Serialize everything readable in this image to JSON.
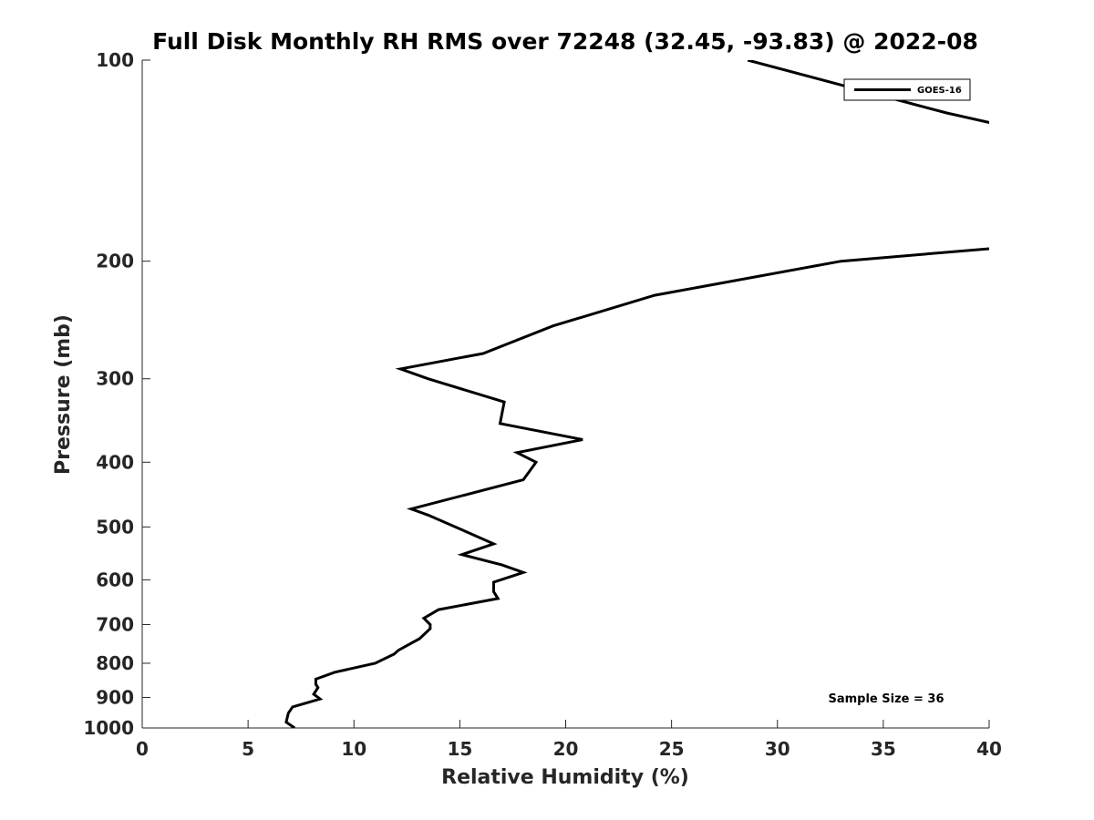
{
  "chart_data": {
    "type": "line",
    "title": "Full Disk Monthly RH RMS over 72248 (32.45, -93.83) @ 2022-08",
    "xlabel": "Relative Humidity (%)",
    "ylabel": "Pressure (mb)",
    "xlim": [
      0,
      40
    ],
    "ylim": [
      1000,
      100
    ],
    "y_scale": "log",
    "x_ticks": [
      0,
      5,
      10,
      15,
      20,
      25,
      30,
      35,
      40
    ],
    "y_ticks": [
      100,
      200,
      300,
      400,
      500,
      600,
      700,
      800,
      900,
      1000
    ],
    "grid": false,
    "legend_position": "top-right",
    "series": [
      {
        "name": "GOES-16",
        "color": "#000000",
        "points": [
          [
            28.6,
            100
          ],
          [
            33.5,
            110
          ],
          [
            38.0,
            120
          ],
          [
            40.5,
            125
          ],
          [
            40.5,
            191
          ],
          [
            33.0,
            200
          ],
          [
            24.2,
            225
          ],
          [
            19.4,
            250
          ],
          [
            16.1,
            275
          ],
          [
            12.2,
            290
          ],
          [
            13.5,
            300
          ],
          [
            17.1,
            325
          ],
          [
            16.9,
            350
          ],
          [
            20.8,
            370
          ],
          [
            17.7,
            387
          ],
          [
            18.6,
            400
          ],
          [
            18.0,
            425
          ],
          [
            12.7,
            470
          ],
          [
            13.5,
            480
          ],
          [
            15.4,
            510
          ],
          [
            16.6,
            530
          ],
          [
            15.1,
            550
          ],
          [
            17.0,
            570
          ],
          [
            18.0,
            585
          ],
          [
            16.6,
            605
          ],
          [
            16.6,
            625
          ],
          [
            16.8,
            640
          ],
          [
            14.0,
            665
          ],
          [
            13.3,
            685
          ],
          [
            13.6,
            700
          ],
          [
            13.6,
            710
          ],
          [
            13.1,
            735
          ],
          [
            12.1,
            765
          ],
          [
            11.9,
            775
          ],
          [
            11.0,
            800
          ],
          [
            9.1,
            825
          ],
          [
            8.2,
            845
          ],
          [
            8.2,
            860
          ],
          [
            8.3,
            870
          ],
          [
            8.1,
            890
          ],
          [
            8.4,
            905
          ],
          [
            7.1,
            930
          ],
          [
            6.9,
            950
          ],
          [
            6.8,
            980
          ],
          [
            7.2,
            1000
          ]
        ]
      }
    ],
    "annotations": [
      "Sample Size = 36"
    ]
  }
}
